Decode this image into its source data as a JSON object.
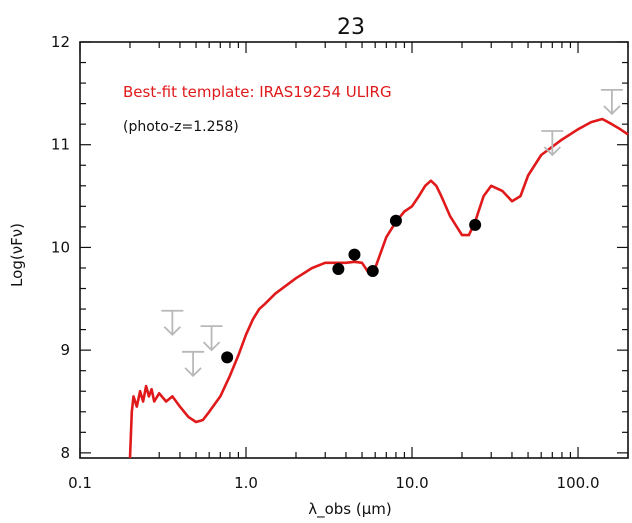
{
  "chart_data": {
    "type": "scatter",
    "title": "23",
    "xlabel": "λ_obs (μm)",
    "ylabel": "Log(νFν)",
    "x_scale": "log",
    "xlim": [
      0.1,
      200
    ],
    "ylim": [
      7.95,
      12
    ],
    "x_ticks": [
      0.1,
      1.0,
      10.0,
      100.0
    ],
    "x_tick_labels": [
      "0.1",
      "1.0",
      "10.0",
      "100.0"
    ],
    "y_ticks": [
      8,
      9,
      10,
      11,
      12
    ],
    "y_tick_labels": [
      "8",
      "9",
      "10",
      "11",
      "12"
    ],
    "grid": false,
    "annotations": [
      {
        "text": "Best-fit template: IRAS19254 ULIRG",
        "color": "#e0191b"
      },
      {
        "text": "(photo-z=1.258)",
        "color": "#111111"
      }
    ],
    "series": [
      {
        "name": "Best-fit template: IRAS19254 ULIRG",
        "kind": "line",
        "color": "#e0191b",
        "points": [
          [
            0.2,
            7.95
          ],
          [
            0.205,
            8.4
          ],
          [
            0.21,
            8.55
          ],
          [
            0.22,
            8.45
          ],
          [
            0.23,
            8.6
          ],
          [
            0.24,
            8.5
          ],
          [
            0.25,
            8.65
          ],
          [
            0.26,
            8.55
          ],
          [
            0.27,
            8.62
          ],
          [
            0.28,
            8.5
          ],
          [
            0.3,
            8.58
          ],
          [
            0.33,
            8.5
          ],
          [
            0.36,
            8.55
          ],
          [
            0.4,
            8.45
          ],
          [
            0.45,
            8.35
          ],
          [
            0.5,
            8.3
          ],
          [
            0.55,
            8.32
          ],
          [
            0.6,
            8.4
          ],
          [
            0.7,
            8.55
          ],
          [
            0.8,
            8.75
          ],
          [
            0.9,
            8.95
          ],
          [
            1.0,
            9.15
          ],
          [
            1.1,
            9.3
          ],
          [
            1.2,
            9.4
          ],
          [
            1.3,
            9.45
          ],
          [
            1.5,
            9.55
          ],
          [
            2.0,
            9.7
          ],
          [
            2.5,
            9.8
          ],
          [
            3.0,
            9.85
          ],
          [
            3.5,
            9.85
          ],
          [
            4.0,
            9.85
          ],
          [
            4.5,
            9.86
          ],
          [
            5.0,
            9.85
          ],
          [
            5.5,
            9.75
          ],
          [
            6.0,
            9.8
          ],
          [
            7.0,
            10.1
          ],
          [
            8.0,
            10.25
          ],
          [
            9.0,
            10.35
          ],
          [
            10.0,
            10.4
          ],
          [
            11.0,
            10.5
          ],
          [
            12.0,
            10.6
          ],
          [
            13.0,
            10.65
          ],
          [
            14.0,
            10.6
          ],
          [
            15.0,
            10.5
          ],
          [
            17.0,
            10.3
          ],
          [
            20.0,
            10.12
          ],
          [
            22.0,
            10.12
          ],
          [
            24.0,
            10.25
          ],
          [
            27.0,
            10.5
          ],
          [
            30.0,
            10.6
          ],
          [
            35.0,
            10.55
          ],
          [
            40.0,
            10.45
          ],
          [
            45.0,
            10.5
          ],
          [
            50.0,
            10.7
          ],
          [
            60.0,
            10.9
          ],
          [
            80.0,
            11.05
          ],
          [
            100.0,
            11.15
          ],
          [
            120.0,
            11.22
          ],
          [
            140.0,
            11.25
          ],
          [
            160.0,
            11.2
          ],
          [
            180.0,
            11.15
          ],
          [
            200.0,
            11.1
          ]
        ]
      },
      {
        "name": "photometry",
        "kind": "points",
        "color": "#000000",
        "points": [
          [
            0.77,
            8.93
          ],
          [
            3.6,
            9.79
          ],
          [
            4.5,
            9.93
          ],
          [
            5.8,
            9.77
          ],
          [
            8.0,
            10.26
          ],
          [
            24.0,
            10.22
          ]
        ]
      },
      {
        "name": "upper limits",
        "kind": "upper_limit_arrows",
        "color": "#b8b8b8",
        "points": [
          [
            0.36,
            9.15
          ],
          [
            0.48,
            8.75
          ],
          [
            0.62,
            9.0
          ],
          [
            70.0,
            10.9
          ],
          [
            160.0,
            11.3
          ]
        ]
      }
    ]
  }
}
